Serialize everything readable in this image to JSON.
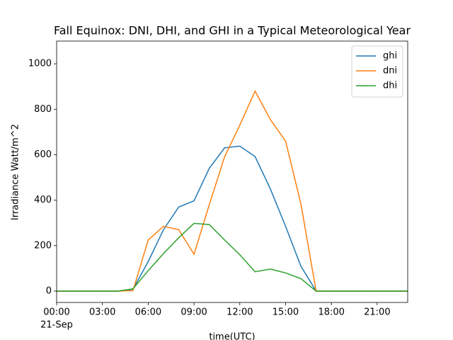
{
  "chart_data": {
    "type": "line",
    "title": "Fall Equinox: DNI, DHI, and GHI in a Typical Meteorological Year",
    "x_label": "time(UTC)",
    "y_label": "Irradiance Watt/m^2",
    "x": [
      0,
      1,
      2,
      3,
      4,
      5,
      6,
      7,
      8,
      9,
      10,
      11,
      12,
      13,
      14,
      15,
      16,
      17,
      18,
      19,
      20,
      21,
      22,
      23
    ],
    "x_date": "21-Sep",
    "series": [
      {
        "name": "ghi",
        "color": "#1f77b4",
        "values": [
          0,
          0,
          0,
          0,
          0,
          8,
          130,
          270,
          370,
          397,
          540,
          630,
          638,
          592,
          450,
          285,
          110,
          0,
          0,
          0,
          0,
          0,
          0,
          0
        ]
      },
      {
        "name": "dni",
        "color": "#ff7f0e",
        "values": [
          0,
          0,
          0,
          0,
          0,
          2,
          225,
          285,
          270,
          162,
          380,
          590,
          730,
          880,
          755,
          660,
          385,
          0,
          0,
          0,
          0,
          0,
          0,
          0
        ]
      },
      {
        "name": "dhi",
        "color": "#2ca02c",
        "values": [
          0,
          0,
          0,
          0,
          0,
          10,
          90,
          165,
          235,
          298,
          293,
          225,
          160,
          85,
          97,
          80,
          55,
          0,
          0,
          0,
          0,
          0,
          0,
          0
        ]
      }
    ],
    "xlim": [
      0,
      23
    ],
    "xticks": [
      {
        "value": 0,
        "label": "00:00"
      },
      {
        "value": 3,
        "label": "03:00"
      },
      {
        "value": 6,
        "label": "06:00"
      },
      {
        "value": 9,
        "label": "09:00"
      },
      {
        "value": 12,
        "label": "12:00"
      },
      {
        "value": 15,
        "label": "15:00"
      },
      {
        "value": 18,
        "label": "18:00"
      },
      {
        "value": 21,
        "label": "21:00"
      }
    ],
    "ylim": [
      -50,
      1100
    ],
    "yticks": [
      0,
      200,
      400,
      600,
      800,
      1000
    ],
    "grid": false,
    "legend": "upper right"
  }
}
